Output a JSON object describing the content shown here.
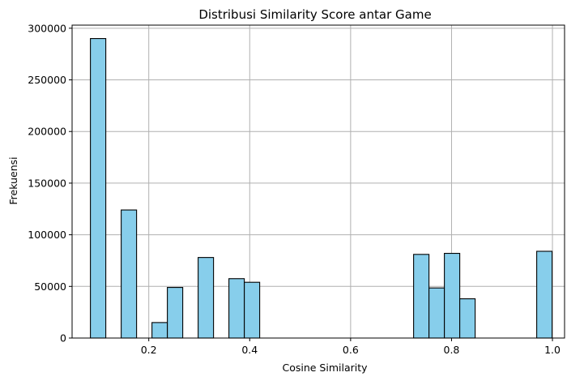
{
  "chart_data": {
    "type": "bar",
    "title": "Distribusi Similarity Score antar Game",
    "xlabel": "Cosine Similarity",
    "ylabel": "Frekuensi",
    "xlim": [
      0.048,
      1.024
    ],
    "ylim": [
      0,
      303000
    ],
    "grid": true,
    "bar_color": "#87ceeb",
    "edge_color": "#000000",
    "x_ticks": [
      0.2,
      0.4,
      0.6,
      0.8,
      1.0
    ],
    "x_tick_labels": [
      "0.2",
      "0.4",
      "0.6",
      "0.8",
      "1.0"
    ],
    "y_ticks": [
      0,
      50000,
      100000,
      150000,
      200000,
      250000,
      300000
    ],
    "y_tick_labels": [
      "0",
      "50000",
      "100000",
      "150000",
      "200000",
      "250000",
      "300000"
    ],
    "bins": [
      {
        "x0": 0.0843,
        "x1": 0.1148,
        "value": 290000
      },
      {
        "x0": 0.1453,
        "x1": 0.1758,
        "value": 124000
      },
      {
        "x0": 0.2063,
        "x1": 0.2368,
        "value": 15000
      },
      {
        "x0": 0.2368,
        "x1": 0.2673,
        "value": 49000
      },
      {
        "x0": 0.2978,
        "x1": 0.3283,
        "value": 78000
      },
      {
        "x0": 0.3588,
        "x1": 0.3893,
        "value": 57500
      },
      {
        "x0": 0.3893,
        "x1": 0.4198,
        "value": 54000
      },
      {
        "x0": 0.7248,
        "x1": 0.7553,
        "value": 81000
      },
      {
        "x0": 0.7553,
        "x1": 0.7858,
        "value": 48500
      },
      {
        "x0": 0.7858,
        "x1": 0.8163,
        "value": 82000
      },
      {
        "x0": 0.8163,
        "x1": 0.8468,
        "value": 38000
      },
      {
        "x0": 0.9688,
        "x1": 0.9993,
        "value": 84000
      }
    ]
  }
}
